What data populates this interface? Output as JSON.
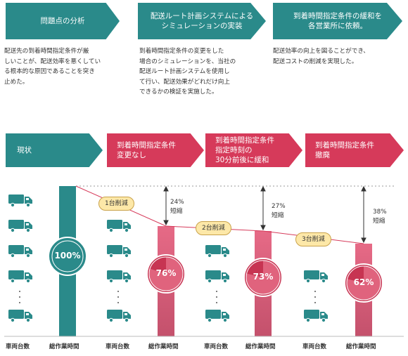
{
  "top_steps": [
    {
      "title": "問題点の分析",
      "desc": "配送先の到着時間指定条件が厳\nしいことが、配送効率を悪くしてい\nる根本的な原因であることを突き\n止めた。"
    },
    {
      "title": "配送ルート計画システムによる\nシミュレーションの実装",
      "desc": "到着時間指定条件の変更をした\n場合のシミュレーションを、当社の\n配送ルート計画システムを使用し\nて行い、配送効果がどれだけ向上\nできるかの検証を実施した。"
    },
    {
      "title": "到着時間指定条件の緩和を\n各営業所に依頼。",
      "desc": "配送効率の向上を図ることができ、\n配送コストの削減を実現した。"
    }
  ],
  "scenarios": [
    {
      "label": "現状"
    },
    {
      "label": "到着時間指定条件\n変更なし"
    },
    {
      "label": "到着時間指定条件\n指定時刻の\n30分前後に緩和"
    },
    {
      "label": "到着時間指定条件\n撤廃"
    }
  ],
  "bars": [
    {
      "percent": "100%",
      "value": 100
    },
    {
      "percent": "76%",
      "value": 76
    },
    {
      "percent": "73%",
      "value": 73
    },
    {
      "percent": "62%",
      "value": 62
    }
  ],
  "reductions": [
    {
      "vehicles": "1台削減",
      "shortening": "24%\n短縮"
    },
    {
      "vehicles": "2台削減",
      "shortening": "27%\n短縮"
    },
    {
      "vehicles": "3台削減",
      "shortening": "38%\n短縮"
    }
  ],
  "axis": {
    "vehicles": "車両台数",
    "worktime": "総作業時間"
  },
  "colors": {
    "teal": "#2a8a8a",
    "red": "#d63a5a",
    "badge": "#fde8a8",
    "truck": "#2a8a8a"
  },
  "icons": {
    "truck": "truck-icon"
  }
}
